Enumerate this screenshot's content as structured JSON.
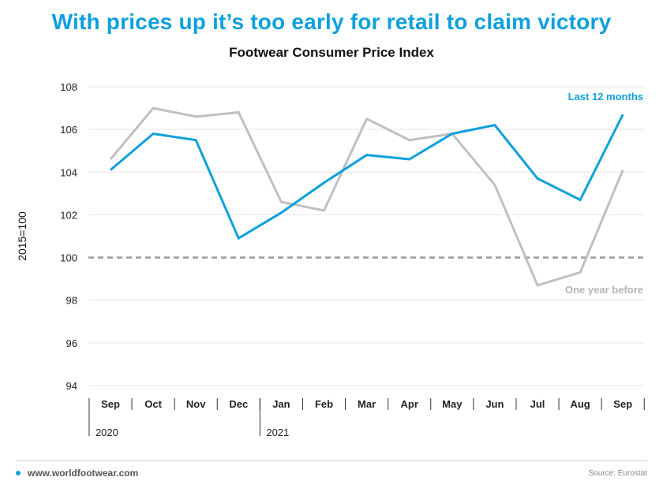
{
  "header": {
    "title": "With prices up it’s too early for retail to claim victory",
    "subtitle": "Footwear Consumer Price Index"
  },
  "footer": {
    "site": "www.worldfootwear.com",
    "source": "Source: Eurostat"
  },
  "colors": {
    "accent": "#0ea0dc",
    "previous_year": "#c0c0c0",
    "baseline": "#9a9a9a"
  },
  "chart_data": {
    "type": "line",
    "title": "Footwear Consumer Price Index",
    "ylabel": "2015=100",
    "xlabel": "",
    "categories": [
      "Sep",
      "Oct",
      "Nov",
      "Dec",
      "Jan",
      "Feb",
      "Mar",
      "Apr",
      "May",
      "Jun",
      "Jul",
      "Aug",
      "Sep"
    ],
    "year_labels": [
      {
        "label": "2020",
        "start_index": 0
      },
      {
        "label": "2021",
        "start_index": 4
      }
    ],
    "ylim": [
      94,
      108
    ],
    "yticks": [
      94,
      96,
      98,
      100,
      102,
      104,
      106,
      108
    ],
    "grid": true,
    "reference_line": {
      "value": 100,
      "style": "dashed"
    },
    "series": [
      {
        "name": "Last 12 months",
        "color": "#0ea0dc",
        "values": [
          104.1,
          105.8,
          105.5,
          100.9,
          102.1,
          103.5,
          104.8,
          104.6,
          105.8,
          106.2,
          103.7,
          102.7,
          106.7
        ]
      },
      {
        "name": "One year before",
        "color": "#c0c0c0",
        "values": [
          104.6,
          107.0,
          106.6,
          106.8,
          102.6,
          102.2,
          106.5,
          105.5,
          105.8,
          103.4,
          98.7,
          99.3,
          104.1
        ]
      }
    ]
  }
}
